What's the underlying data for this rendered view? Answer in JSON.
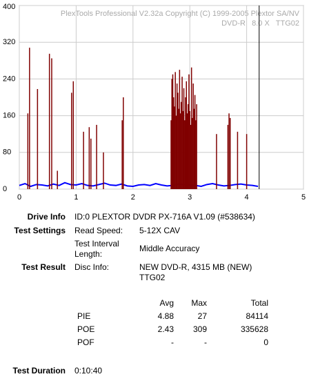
{
  "chart_data": {
    "type": "scan",
    "title": "PlexTools Professional V2.32a Copyright (C) 1999-2005 Plextor SA/NV",
    "subtitle": "DVD-R   8.0 X   TTG02",
    "xlim": [
      0,
      5
    ],
    "xticks": [
      0,
      1,
      2,
      3,
      4,
      5
    ],
    "ylim": [
      0,
      400
    ],
    "yticks": [
      0,
      80,
      160,
      240,
      320,
      400
    ],
    "grid": true,
    "end_x": 4.22,
    "series": [
      {
        "color": "#0000ff",
        "style": "line",
        "x": [
          0,
          0.1,
          0.2,
          0.3,
          0.4,
          0.5,
          0.6,
          0.7,
          0.8,
          0.9,
          1,
          1.1,
          1.2,
          1.3,
          1.4,
          1.5,
          1.6,
          1.7,
          1.8,
          1.9,
          2,
          2.1,
          2.2,
          2.3,
          2.4,
          2.5,
          2.6,
          2.7,
          2.8,
          2.9,
          3,
          3.1,
          3.2,
          3.3,
          3.4,
          3.5,
          3.6,
          3.7,
          3.8,
          3.9,
          4,
          4.1,
          4.2
        ],
        "values": [
          8,
          12,
          6,
          10,
          9,
          7,
          11,
          8,
          14,
          10,
          9,
          12,
          8,
          7,
          10,
          13,
          9,
          8,
          11,
          7,
          6,
          9,
          10,
          8,
          12,
          9,
          7,
          8,
          11,
          10,
          9,
          8,
          6,
          10,
          12,
          9,
          7,
          8,
          10,
          11,
          9,
          8,
          6
        ]
      },
      {
        "color": "#800000",
        "style": "spikes",
        "x": [
          0.15,
          0.18,
          0.32,
          0.53,
          0.57,
          0.67,
          0.92,
          0.95,
          1.13,
          1.23,
          1.26,
          1.36,
          1.48,
          1.81,
          1.83,
          2.67,
          2.685,
          2.7,
          2.715,
          2.73,
          2.745,
          2.76,
          2.775,
          2.79,
          2.805,
          2.82,
          2.835,
          2.85,
          2.865,
          2.88,
          2.895,
          2.91,
          2.925,
          2.94,
          2.955,
          2.97,
          2.985,
          3,
          3.015,
          3.03,
          3.045,
          3.06,
          3.075,
          3.09,
          3.105,
          3.12,
          3.47,
          3.67,
          3.69,
          3.71,
          3.84,
          4
        ],
        "values": [
          165,
          308,
          218,
          295,
          285,
          40,
          210,
          235,
          125,
          135,
          110,
          140,
          80,
          150,
          200,
          150,
          240,
          250,
          200,
          180,
          255,
          160,
          230,
          210,
          175,
          260,
          165,
          190,
          245,
          170,
          220,
          150,
          200,
          235,
          165,
          185,
          250,
          170,
          140,
          265,
          155,
          230,
          175,
          205,
          150,
          185,
          120,
          140,
          165,
          155,
          125,
          120
        ]
      }
    ]
  },
  "info": {
    "drive_label": "Drive Info",
    "drive_value": "ID:0 PLEXTOR DVDR PX-716A V1.09 (#538634)",
    "settings_label": "Test Settings",
    "settings": [
      [
        "Read Speed:",
        "5-12X CAV"
      ],
      [
        "Test Interval Length:",
        "Middle Accuracy"
      ]
    ],
    "result_label": "Test Result",
    "disc": [
      "Disc Info:",
      "NEW DVD-R, 4315 MB (NEW) TTG02"
    ],
    "stats_header": [
      "Avg",
      "Max",
      "Total"
    ],
    "stats": [
      [
        "PIE",
        4.88,
        27,
        84114
      ],
      [
        "POE",
        2.43,
        309,
        335628
      ],
      [
        "POF",
        "-",
        "-",
        0
      ]
    ],
    "duration_label": "Test Duration",
    "duration_value": "0:10:40"
  }
}
